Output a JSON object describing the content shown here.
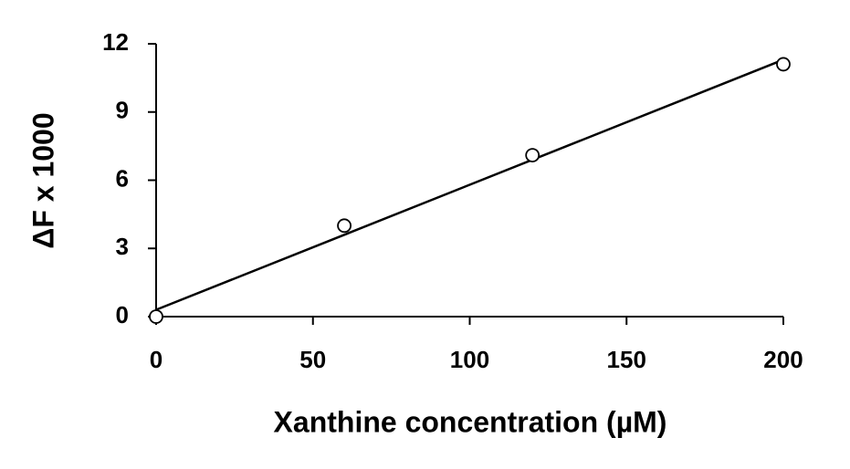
{
  "chart_data": {
    "type": "scatter",
    "x_label": "Xanthine concentration (µM)",
    "y_label": "ΔF x 1000",
    "series": [
      {
        "x": [
          0,
          60,
          120,
          200
        ],
        "values": [
          0,
          4.0,
          7.1,
          11.1
        ],
        "color": "#000000"
      }
    ],
    "trendline": {
      "x": [
        0,
        200
      ],
      "values": [
        0.3,
        11.3
      ],
      "color": "#000000"
    },
    "xlim": [
      0,
      200
    ],
    "xticks": [
      0,
      50,
      100,
      150,
      200
    ],
    "ylim": [
      0,
      12
    ],
    "yticks": [
      0,
      3,
      6,
      9,
      12
    ],
    "grid": false
  }
}
